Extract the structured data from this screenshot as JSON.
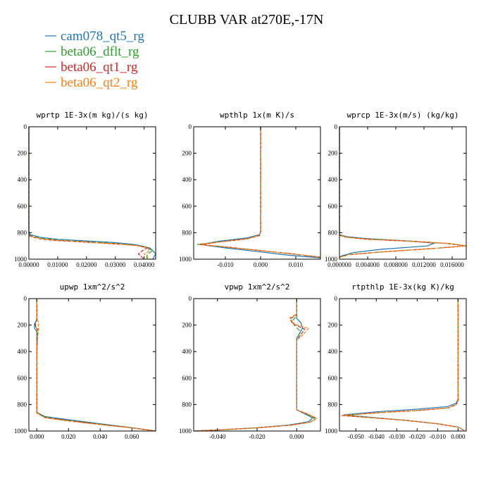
{
  "title": "CLUBB VAR at270E,-17N",
  "legend": [
    {
      "name": "cam078_qt5_rg",
      "color": "#1f77b4"
    },
    {
      "name": "beta06_dflt_rg",
      "color": "#2ca02c"
    },
    {
      "name": "beta06_qt1_rg",
      "color": "#d62728"
    },
    {
      "name": "beta06_qt2_rg",
      "color": "#ff7f0e"
    }
  ],
  "chart_data": [
    {
      "type": "line",
      "title": "wprtp  1E-3x(m kg)/(s kg)",
      "ylim": [
        1000,
        0
      ],
      "xlim": [
        0,
        0.044
      ],
      "xticks": [
        0,
        0.01,
        0.02,
        0.03,
        0.04
      ],
      "xtick_labels": [
        "0.00000",
        "0.01000",
        "0.02000",
        "0.03000",
        "0.04000"
      ],
      "yticks": [
        0,
        200,
        400,
        600,
        800,
        1000
      ],
      "series": [
        {
          "name": "cam078_qt5_rg",
          "x": [
            0,
            0,
            0.0005,
            0.004,
            0.01,
            0.02,
            0.03,
            0.037,
            0.041,
            0.043,
            0.044,
            0.043
          ],
          "y": [
            0,
            800,
            815,
            835,
            850,
            862,
            875,
            890,
            910,
            935,
            960,
            1000
          ]
        },
        {
          "name": "beta06_dflt_rg",
          "x": [
            0,
            0,
            0.0005,
            0.004,
            0.01,
            0.02,
            0.03,
            0.038,
            0.042,
            0.043,
            0.041,
            0.041
          ],
          "y": [
            0,
            810,
            822,
            842,
            856,
            868,
            882,
            895,
            915,
            935,
            965,
            1000
          ]
        },
        {
          "name": "beta06_qt1_rg",
          "x": [
            0,
            0,
            0.0005,
            0.004,
            0.01,
            0.02,
            0.03,
            0.038,
            0.041,
            0.0395,
            0.038,
            0.04
          ],
          "y": [
            0,
            815,
            828,
            848,
            860,
            872,
            885,
            898,
            915,
            935,
            960,
            1000
          ]
        },
        {
          "name": "beta06_qt2_rg",
          "x": [
            0,
            0,
            0.0005,
            0.004,
            0.01,
            0.02,
            0.03,
            0.037,
            0.041,
            0.042,
            0.04,
            0.042
          ],
          "y": [
            0,
            812,
            826,
            846,
            858,
            870,
            884,
            896,
            914,
            935,
            962,
            1000
          ]
        }
      ]
    },
    {
      "type": "line",
      "title": "wpthlp  1x(m K)/s",
      "ylim": [
        1000,
        0
      ],
      "xlim": [
        -0.019,
        0.017
      ],
      "xticks": [
        -0.01,
        0,
        0.01
      ],
      "xtick_labels": [
        "-0.010",
        "0.000",
        "0.010"
      ],
      "yticks": [
        0,
        200,
        400,
        600,
        800,
        1000
      ],
      "series": [
        {
          "name": "cam078_qt5_rg",
          "x": [
            0,
            0,
            -0.0003,
            -0.004,
            -0.012,
            -0.017,
            -0.01,
            0.0,
            0.008,
            0.017
          ],
          "y": [
            0,
            790,
            815,
            840,
            865,
            890,
            915,
            945,
            970,
            990
          ]
        },
        {
          "name": "beta06_dflt_rg",
          "x": [
            0,
            0,
            -0.0003,
            -0.004,
            -0.012,
            -0.018,
            -0.009,
            0.0,
            0.009,
            0.017
          ],
          "y": [
            0,
            795,
            820,
            845,
            870,
            888,
            910,
            935,
            960,
            985
          ]
        },
        {
          "name": "beta06_qt1_rg",
          "x": [
            0,
            0,
            -0.0003,
            -0.004,
            -0.012,
            -0.017,
            -0.009,
            0.0,
            0.009,
            0.017
          ],
          "y": [
            0,
            798,
            822,
            848,
            872,
            890,
            910,
            935,
            960,
            985
          ]
        },
        {
          "name": "beta06_qt2_rg",
          "x": [
            0,
            0,
            -0.0003,
            -0.004,
            -0.012,
            -0.0175,
            -0.009,
            0.0,
            0.009,
            0.017
          ],
          "y": [
            0,
            796,
            821,
            846,
            871,
            889,
            910,
            935,
            960,
            985
          ]
        }
      ]
    },
    {
      "type": "line",
      "title": "wprcp  1E-3x(m/s) (kg/kg)",
      "ylim": [
        1000,
        0
      ],
      "xlim": [
        0,
        0.018
      ],
      "xticks": [
        0,
        0.004,
        0.008,
        0.012,
        0.016
      ],
      "xtick_labels": [
        "0.000000",
        "0.004000",
        "0.008000",
        "0.012000",
        "0.016000"
      ],
      "yticks": [
        0,
        200,
        400,
        600,
        800,
        1000
      ],
      "series": [
        {
          "name": "cam078_qt5_rg",
          "x": [
            0,
            0,
            0.001,
            0.004,
            0.009,
            0.0135,
            0.0125,
            0.006,
            0.002,
            0.0003,
            0
          ],
          "y": [
            0,
            815,
            830,
            845,
            860,
            878,
            900,
            925,
            950,
            975,
            985
          ]
        },
        {
          "name": "beta06_dflt_rg",
          "x": [
            0,
            0,
            0.001,
            0.004,
            0.01,
            0.015,
            0.018,
            0.013,
            0.006,
            0.0015,
            0
          ],
          "y": [
            0,
            818,
            833,
            848,
            863,
            880,
            900,
            920,
            945,
            965,
            985
          ]
        },
        {
          "name": "beta06_qt1_rg",
          "x": [
            0,
            0,
            0.001,
            0.004,
            0.01,
            0.0155,
            0.018,
            0.013,
            0.006,
            0.0015,
            0
          ],
          "y": [
            0,
            820,
            835,
            850,
            865,
            882,
            900,
            920,
            945,
            965,
            985
          ]
        },
        {
          "name": "beta06_qt2_rg",
          "x": [
            0,
            0,
            0.001,
            0.004,
            0.01,
            0.0155,
            0.018,
            0.013,
            0.006,
            0.0015,
            0
          ],
          "y": [
            0,
            819,
            834,
            849,
            864,
            881,
            900,
            920,
            945,
            965,
            985
          ]
        }
      ]
    },
    {
      "type": "line",
      "title": "upwp  1xm^2/s^2",
      "ylim": [
        1000,
        0
      ],
      "xlim": [
        -0.005,
        0.075
      ],
      "xticks": [
        0,
        0.02,
        0.04,
        0.06
      ],
      "xtick_labels": [
        "0.000",
        "0.020",
        "0.040",
        "0.060"
      ],
      "yticks": [
        0,
        200,
        400,
        600,
        800,
        1000
      ],
      "series": [
        {
          "name": "cam078_qt5_rg",
          "x": [
            0,
            0,
            -0.0015,
            -0.0015,
            0,
            0,
            0,
            0.005,
            0.02,
            0.04,
            0.06,
            0.075
          ],
          "y": [
            0,
            160,
            190,
            220,
            250,
            400,
            860,
            890,
            915,
            945,
            975,
            1000
          ]
        },
        {
          "name": "beta06_dflt_rg",
          "x": [
            0,
            0,
            -0.001,
            0,
            0,
            0,
            0.005,
            0.02,
            0.04,
            0.06,
            0.075
          ],
          "y": [
            0,
            160,
            200,
            250,
            400,
            860,
            895,
            920,
            948,
            975,
            1000
          ]
        },
        {
          "name": "beta06_qt1_rg",
          "x": [
            0,
            0,
            -0.001,
            0.0005,
            0,
            0,
            0.005,
            0.02,
            0.04,
            0.06,
            0.075
          ],
          "y": [
            0,
            150,
            195,
            240,
            400,
            865,
            898,
            922,
            950,
            976,
            1000
          ]
        },
        {
          "name": "beta06_qt2_rg",
          "x": [
            0,
            0,
            0.001,
            0.001,
            0,
            0,
            0.005,
            0.02,
            0.04,
            0.06,
            0.075
          ],
          "y": [
            0,
            140,
            180,
            230,
            400,
            865,
            900,
            925,
            952,
            977,
            1000
          ]
        }
      ]
    },
    {
      "type": "line",
      "title": "vpwp  1xm^2/s^2",
      "ylim": [
        1000,
        0
      ],
      "xlim": [
        -0.052,
        0.012
      ],
      "xticks": [
        -0.04,
        -0.02,
        0
      ],
      "xtick_labels": [
        "-0.040",
        "-0.020",
        "0.000"
      ],
      "yticks": [
        0,
        200,
        400,
        600,
        800,
        1000
      ],
      "series": [
        {
          "name": "cam078_qt5_rg",
          "x": [
            0,
            0,
            0.002,
            0.003,
            0.0015,
            0,
            0,
            0.004,
            0.008,
            0.006,
            -0.004,
            -0.02,
            -0.04,
            -0.052
          ],
          "y": [
            0,
            150,
            180,
            220,
            260,
            300,
            840,
            870,
            900,
            930,
            955,
            975,
            992,
            1000
          ]
        },
        {
          "name": "beta06_dflt_rg",
          "x": [
            0,
            0,
            -0.002,
            -0.001,
            0.002,
            0,
            0,
            0.005,
            0.009,
            0.007,
            -0.003,
            -0.02,
            -0.04,
            -0.052
          ],
          "y": [
            0,
            130,
            165,
            205,
            250,
            300,
            840,
            872,
            903,
            932,
            956,
            976,
            992,
            1000
          ]
        },
        {
          "name": "beta06_qt1_rg",
          "x": [
            0,
            0,
            -0.003,
            -0.002,
            0.004,
            0.002,
            0,
            0,
            0.006,
            0.01,
            0.007,
            -0.003,
            -0.02,
            -0.04,
            -0.052
          ],
          "y": [
            0,
            120,
            150,
            190,
            230,
            275,
            310,
            840,
            875,
            905,
            933,
            956,
            976,
            992,
            1000
          ]
        },
        {
          "name": "beta06_qt2_rg",
          "x": [
            0,
            0,
            -0.0035,
            -0.0025,
            0.006,
            0.003,
            0,
            0,
            0.006,
            0.01,
            0.007,
            -0.003,
            -0.02,
            -0.04,
            -0.052
          ],
          "y": [
            0,
            115,
            145,
            185,
            225,
            275,
            315,
            840,
            875,
            905,
            933,
            956,
            976,
            992,
            1000
          ]
        }
      ]
    },
    {
      "type": "line",
      "title": "rtpthlp  1E-3x(kg K)/kg",
      "ylim": [
        1000,
        0
      ],
      "xlim": [
        -0.058,
        0.004
      ],
      "xticks": [
        -0.05,
        -0.04,
        -0.03,
        -0.02,
        -0.01,
        0
      ],
      "xtick_labels": [
        "-0.050",
        "-0.040",
        "-0.030",
        "-0.020",
        "-0.010",
        "0.000"
      ],
      "yticks": [
        0,
        200,
        400,
        600,
        800,
        1000
      ],
      "series": [
        {
          "name": "cam078_qt5_rg",
          "x": [
            0,
            0,
            -0.001,
            -0.005,
            -0.02,
            -0.04,
            -0.056,
            -0.04,
            -0.025,
            -0.01,
            0,
            0.003
          ],
          "y": [
            0,
            760,
            790,
            815,
            835,
            855,
            878,
            900,
            920,
            945,
            970,
            995
          ]
        },
        {
          "name": "beta06_dflt_rg",
          "x": [
            0,
            0,
            -0.001,
            -0.005,
            -0.02,
            -0.04,
            -0.055,
            -0.042,
            -0.025,
            -0.01,
            0,
            0.003
          ],
          "y": [
            0,
            770,
            800,
            825,
            845,
            862,
            882,
            900,
            920,
            945,
            970,
            995
          ]
        },
        {
          "name": "beta06_qt1_rg",
          "x": [
            0,
            0,
            -0.001,
            -0.005,
            -0.02,
            -0.04,
            -0.057,
            -0.042,
            -0.025,
            -0.01,
            0,
            0.003
          ],
          "y": [
            0,
            772,
            802,
            826,
            846,
            863,
            883,
            900,
            920,
            945,
            970,
            995
          ]
        },
        {
          "name": "beta06_qt2_rg",
          "x": [
            0,
            0,
            -0.001,
            -0.005,
            -0.02,
            -0.04,
            -0.0565,
            -0.042,
            -0.025,
            -0.01,
            0,
            0.003
          ],
          "y": [
            0,
            771,
            801,
            825,
            845,
            862,
            882,
            900,
            920,
            945,
            970,
            995
          ]
        }
      ]
    }
  ]
}
